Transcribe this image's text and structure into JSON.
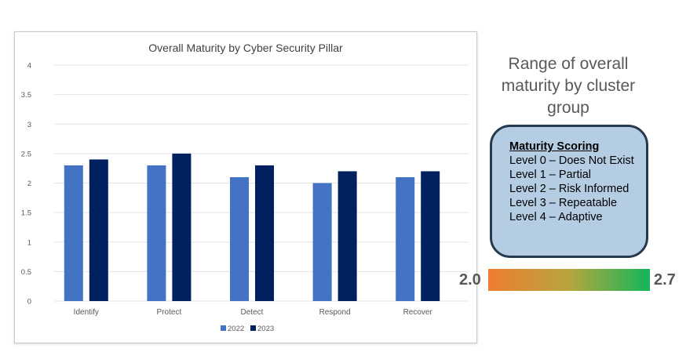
{
  "chart_data": {
    "type": "bar",
    "title": "Overall Maturity by Cyber Security Pillar",
    "xlabel": "",
    "ylabel": "",
    "categories": [
      "Identify",
      "Protect",
      "Detect",
      "Respond",
      "Recover"
    ],
    "series": [
      {
        "name": "2022",
        "values": [
          2.3,
          2.3,
          2.1,
          2.0,
          2.1
        ],
        "color": "#4472c4"
      },
      {
        "name": "2023",
        "values": [
          2.4,
          2.5,
          2.3,
          2.2,
          2.2
        ],
        "color": "#002060"
      }
    ],
    "ylim": [
      0,
      4
    ],
    "yticks": [
      "0",
      "0.5",
      "1",
      "1.5",
      "2",
      "2.5",
      "3",
      "3.5",
      "4"
    ],
    "grid": true,
    "legend_position": "bottom"
  },
  "range_panel": {
    "title": "Range of overall maturity by cluster group",
    "min_label": "2.0",
    "max_label": "2.7",
    "gradient_colors": [
      "#ee7d30",
      "#b7a53d",
      "#12b65a"
    ]
  },
  "scoring": {
    "title": "Maturity Scoring",
    "levels": [
      "Level 0 – Does Not Exist",
      "Level 1 – Partial",
      "Level 2 – Risk Informed",
      "Level 3 – Repeatable",
      "Level 4 – Adaptive"
    ]
  }
}
